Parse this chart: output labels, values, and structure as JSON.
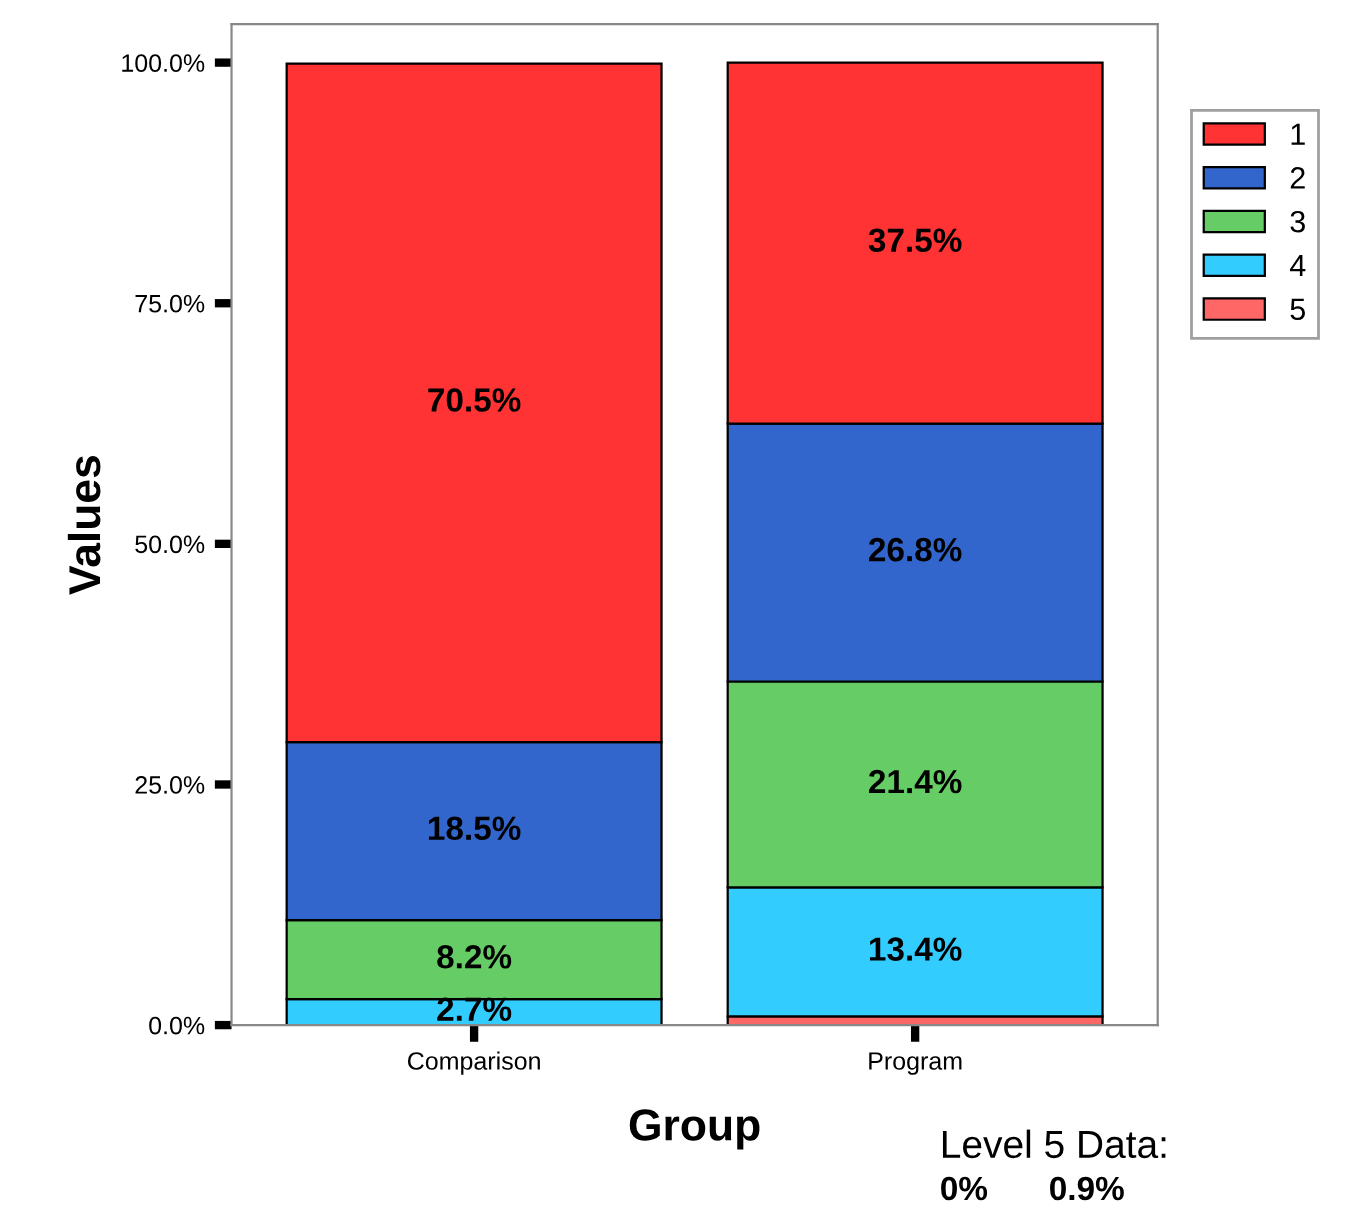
{
  "chart_data": {
    "type": "bar",
    "stacked": true,
    "xlabel": "Group",
    "ylabel": "Values",
    "categories": [
      "Comparison",
      "Program"
    ],
    "series": [
      {
        "name": "5",
        "color": "#ff6666",
        "values": [
          0,
          0.9
        ],
        "value_labels": [
          null,
          null
        ]
      },
      {
        "name": "4",
        "color": "#33ccff",
        "values": [
          2.7,
          13.4
        ],
        "value_labels": [
          "2.7%",
          "13.4%"
        ]
      },
      {
        "name": "3",
        "color": "#66cc66",
        "values": [
          8.2,
          21.4
        ],
        "value_labels": [
          "8.2%",
          "21.4%"
        ]
      },
      {
        "name": "2",
        "color": "#3366cc",
        "values": [
          18.5,
          26.8
        ],
        "value_labels": [
          "18.5%",
          "26.8%"
        ]
      },
      {
        "name": "1",
        "color": "#ff3333",
        "values": [
          70.5,
          37.5
        ],
        "value_labels": [
          "70.5%",
          "37.5%"
        ]
      }
    ],
    "ylim": [
      0,
      104
    ],
    "yticks": [
      {
        "value": 0,
        "label": "0.0%"
      },
      {
        "value": 25,
        "label": "25.0%"
      },
      {
        "value": 50,
        "label": "50.0%"
      },
      {
        "value": 75,
        "label": "75.0%"
      },
      {
        "value": 100,
        "label": "100.0%"
      }
    ],
    "grid": false,
    "legend": "right",
    "annotations": [
      "Level 5 Data:",
      "0%",
      "0.9%"
    ]
  }
}
